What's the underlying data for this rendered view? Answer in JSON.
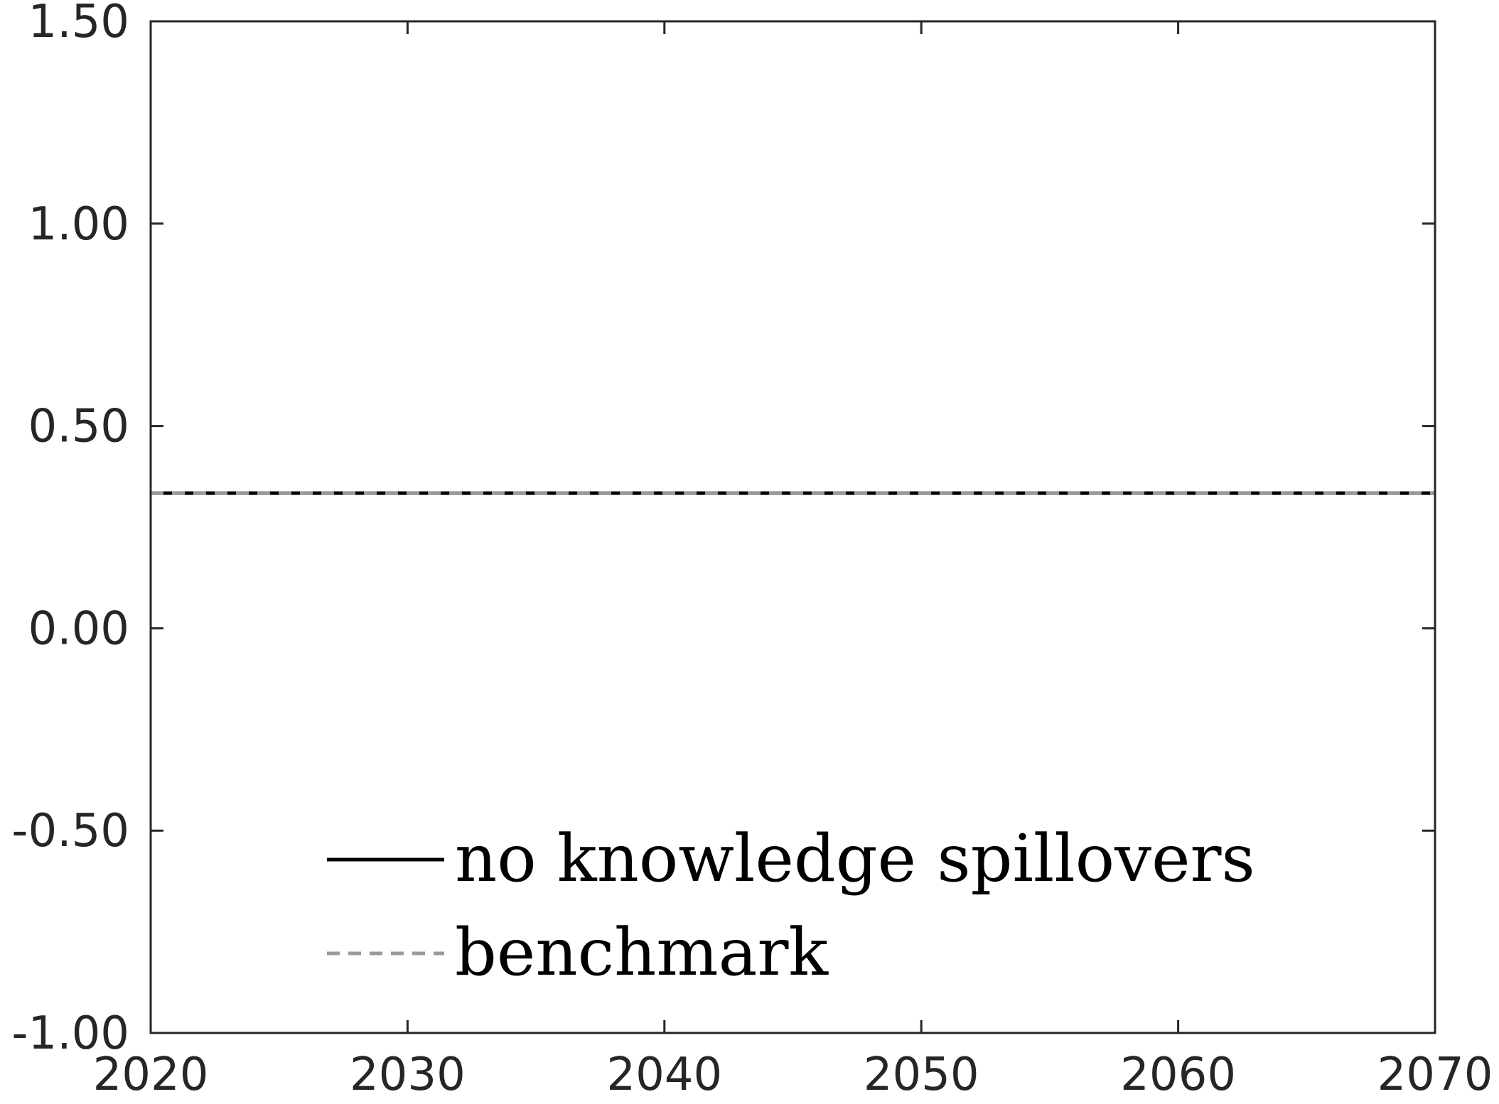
{
  "chart_data": {
    "type": "line",
    "title": "",
    "xlabel": "",
    "ylabel": "",
    "xlim": [
      2020,
      2070
    ],
    "ylim": [
      -1.0,
      1.5
    ],
    "x_ticks": [
      2020,
      2030,
      2040,
      2050,
      2060,
      2070
    ],
    "x_tick_labels": [
      "2020",
      "2030",
      "2040",
      "2050",
      "2060",
      "2070"
    ],
    "y_ticks": [
      -1.0,
      -0.5,
      0.0,
      0.5,
      1.0,
      1.5
    ],
    "y_tick_labels": [
      "-1.00",
      "-0.50",
      "0.00",
      "0.50",
      "1.00",
      "1.50"
    ],
    "grid": false,
    "legend_position": "bottom-center",
    "series": [
      {
        "name": "no knowledge spillovers",
        "style": "solid",
        "color": "#000000",
        "x": [
          2020,
          2070
        ],
        "y": [
          0.334,
          0.334
        ]
      },
      {
        "name": "benchmark",
        "style": "dashed",
        "color": "#999999",
        "x": [
          2020,
          2070
        ],
        "y": [
          0.334,
          0.334
        ]
      }
    ],
    "colors": {
      "axes": "#262626",
      "background": "#ffffff"
    }
  }
}
